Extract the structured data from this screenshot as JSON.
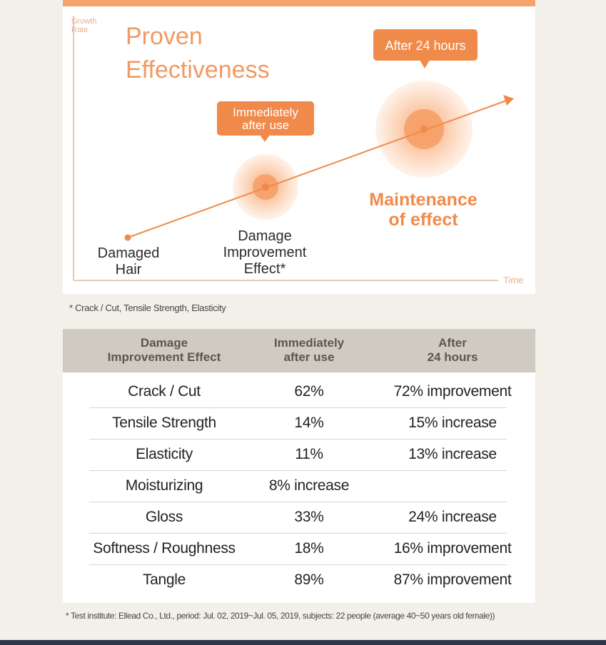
{
  "chart_data": {
    "type": "line",
    "title": "Proven Effectiveness",
    "xlabel": "Time",
    "ylabel": "Growth Rate",
    "points": [
      {
        "label": "Damaged Hair"
      },
      {
        "label": "Damage Improvement Effect*",
        "callout": "Immediately after use"
      },
      {
        "label": "Maintenance of effect",
        "callout": "After 24 hours"
      }
    ],
    "title_line1": "Proven",
    "title_line2": "Effectiveness",
    "ylabel_line1": "Growth",
    "ylabel_line2": "Rate",
    "callout1_line1": "Immediately",
    "callout1_line2": "after use",
    "callout2": "After 24 hours",
    "p1_line1": "Damaged",
    "p1_line2": "Hair",
    "p2_line1": "Damage",
    "p2_line2": "Improvement",
    "p2_line3": "Effect*",
    "p3_line1": "Maintenance",
    "p3_line2": "of effect"
  },
  "chart_note": "* Crack / Cut, Tensile Strength, Elasticity",
  "table": {
    "headers": [
      "Damage\nImprovement Effect",
      "Immediately\nafter use",
      "After\n24 hours"
    ],
    "rows": [
      {
        "item": "Crack / Cut",
        "immediate": "62%",
        "after24": "72% improvement"
      },
      {
        "item": "Tensile Strength",
        "immediate": "14%",
        "after24": "15% increase"
      },
      {
        "item": "Elasticity",
        "immediate": "11%",
        "after24": "13% increase"
      },
      {
        "item": "Moisturizing",
        "immediate": "8% increase",
        "after24": ""
      },
      {
        "item": "Gloss",
        "immediate": "33%",
        "after24": "24% increase"
      },
      {
        "item": "Softness / Roughness",
        "immediate": "18%",
        "after24": "16% improvement"
      },
      {
        "item": "Tangle",
        "immediate": "89%",
        "after24": "87% improvement"
      }
    ]
  },
  "footer_note": "* Test institute: Ellead Co., Ltd., period: Jul. 02, 2019~Jul. 05, 2019, subjects: 22 people (average 40~50 years old female))",
  "colors": {
    "accent": "#f08a4b",
    "accent_light": "#fbd7bd",
    "header_bg": "#cfcac2",
    "bottom_bar": "#2c3446"
  }
}
